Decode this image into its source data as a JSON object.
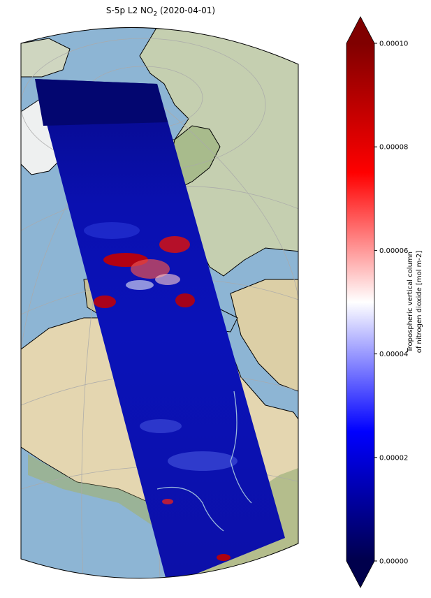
{
  "title": {
    "prefix": "S-5p L2 NO",
    "subscript": "2",
    "suffix": " (2020-04-01)"
  },
  "colorbar": {
    "label_line1": "Tropospheric vertical column",
    "label_line2": "of nitrogen dioxide [mol m-2]",
    "ticks": [
      "0.00000",
      "0.00002",
      "0.00004",
      "0.00006",
      "0.00008",
      "0.00010"
    ],
    "colormap": "seismic",
    "range": [
      0.0,
      0.0001
    ],
    "extend": "both"
  },
  "map": {
    "projection": "orthographic",
    "background": "natural earth shaded relief",
    "gridlines": true,
    "coastlines": true,
    "colors": {
      "ocean": "#8fb7d6",
      "land_green": "#b8c89a",
      "desert": "#e8dcc0",
      "ice": "#f0f2f2",
      "swath_base": "#0a0fa8"
    }
  }
}
